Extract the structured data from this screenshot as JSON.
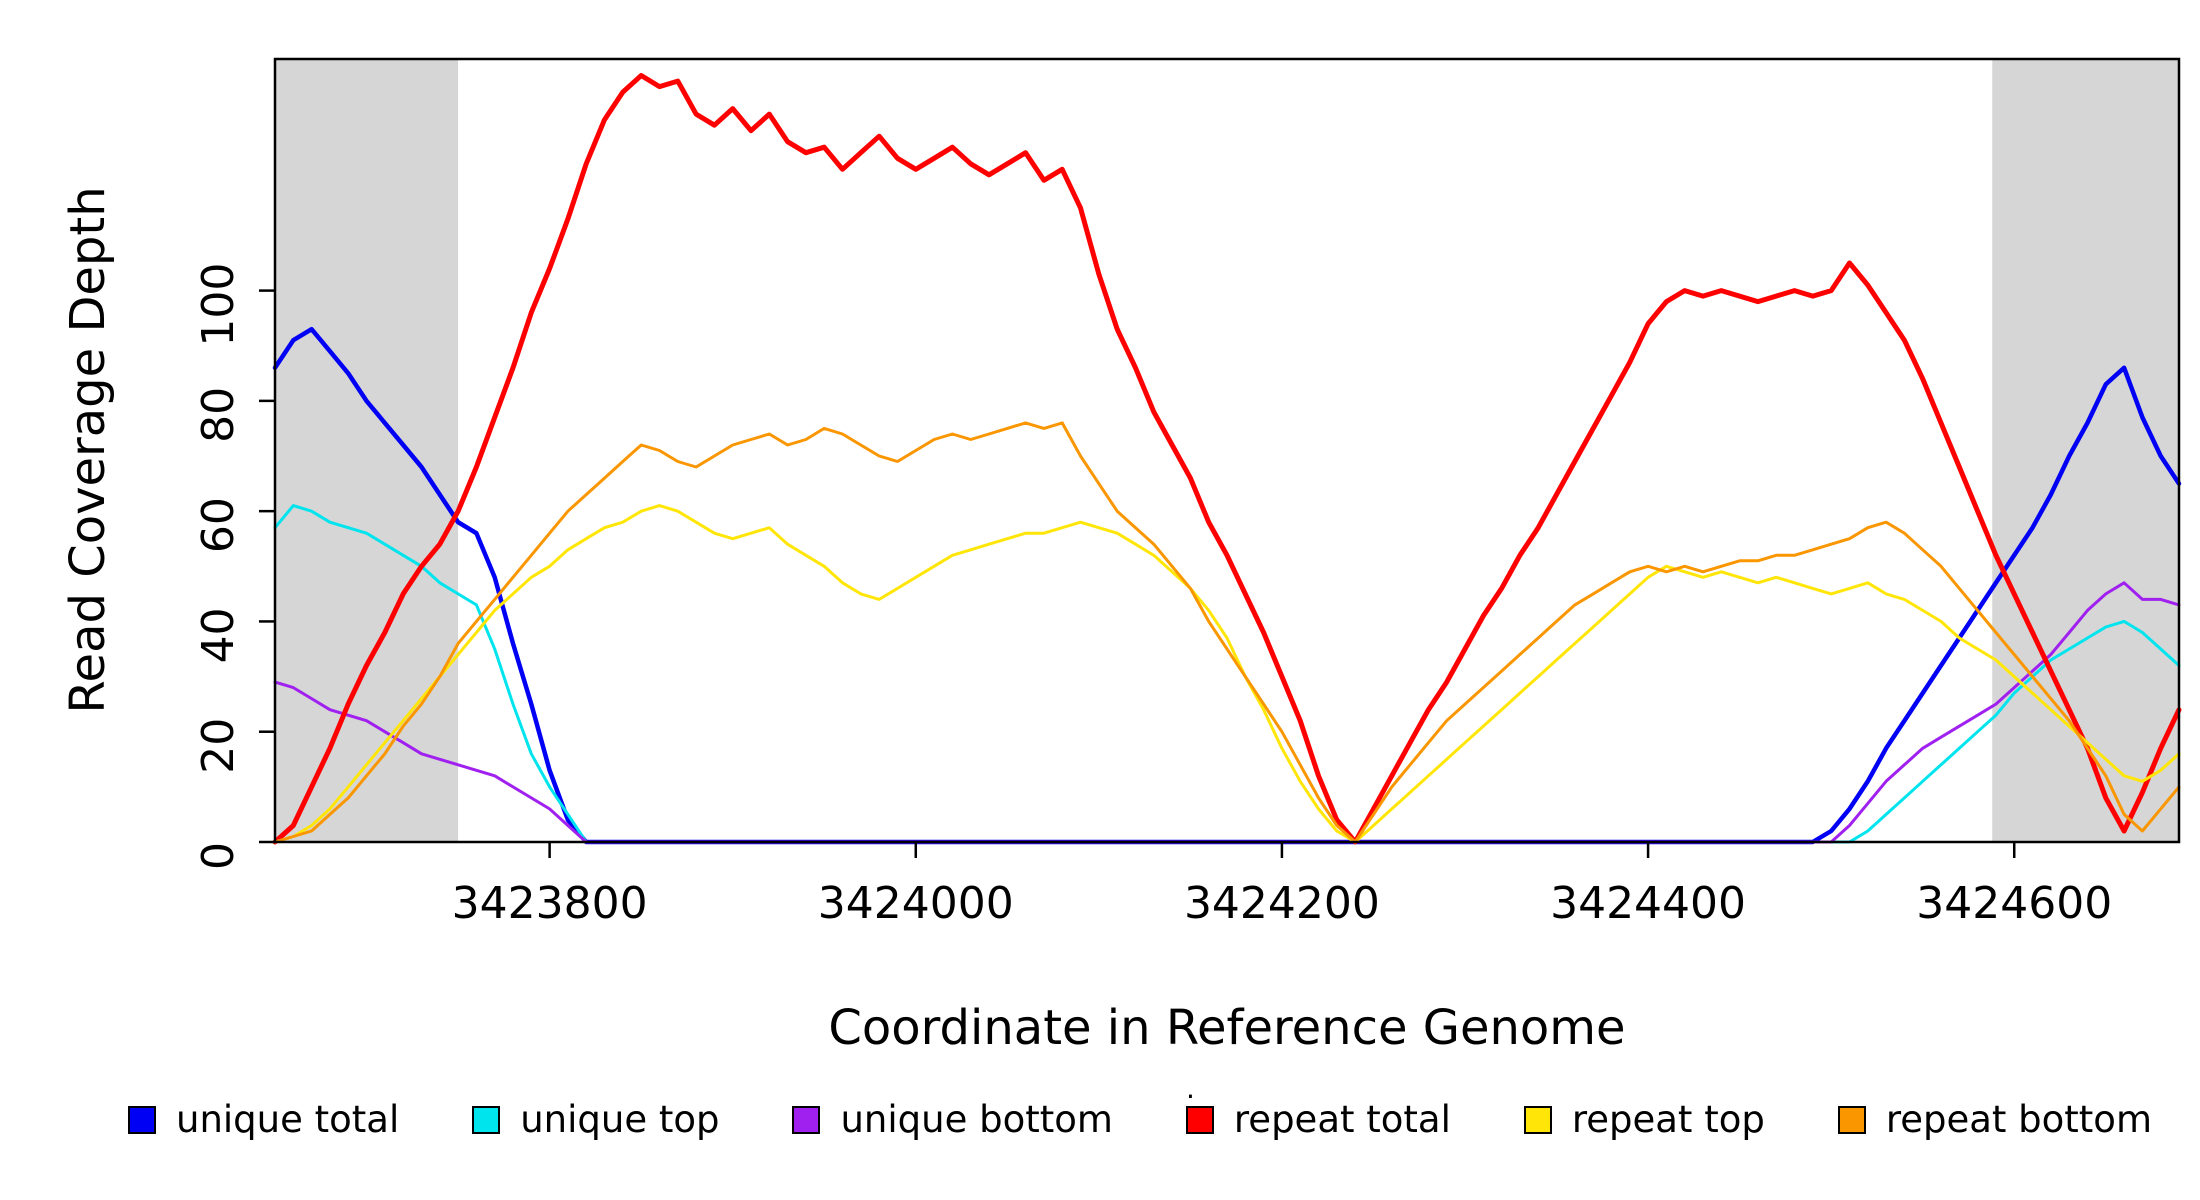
{
  "legend_dot": ".",
  "chart_data": {
    "type": "line",
    "title": "",
    "xlabel": "Coordinate in Reference Genome",
    "ylabel": "Read Coverage Depth",
    "xlim": [
      3423650,
      3424690
    ],
    "ylim": [
      0,
      142
    ],
    "x_ticks": [
      3423800,
      3424000,
      3424200,
      3424400,
      3424600
    ],
    "y_ticks": [
      0,
      20,
      40,
      60,
      80,
      100
    ],
    "grid": false,
    "legend_position": "bottom",
    "shade_color": "#d6d6d6",
    "shaded_regions": [
      {
        "x_start": 3423650,
        "x_end": 3423750
      },
      {
        "x_start": 3424588,
        "x_end": 3424690
      }
    ],
    "x_start": 3423650,
    "x_step": 10,
    "series": [
      {
        "name": "unique total",
        "color": "#0000F5",
        "width": 4.5,
        "values": [
          86,
          91,
          93,
          89,
          85,
          80,
          76,
          72,
          68,
          63,
          58,
          56,
          48,
          36,
          25,
          13,
          4,
          0,
          0,
          0,
          0,
          0,
          0,
          0,
          0,
          0,
          0,
          0,
          0,
          0,
          0,
          0,
          0,
          0,
          0,
          0,
          0,
          0,
          0,
          0,
          0,
          0,
          0,
          0,
          0,
          0,
          0,
          0,
          0,
          0,
          0,
          0,
          0,
          0,
          0,
          0,
          0,
          0,
          0,
          0,
          0,
          0,
          0,
          0,
          0,
          0,
          0,
          0,
          0,
          0,
          0,
          0,
          0,
          0,
          0,
          0,
          0,
          0,
          0,
          0,
          0,
          0,
          0,
          0,
          0,
          2,
          6,
          11,
          17,
          22,
          27,
          32,
          37,
          42,
          47,
          52,
          57,
          63,
          70,
          76,
          83,
          86,
          77,
          70,
          65
        ]
      },
      {
        "name": "unique top",
        "color": "#00E4EE",
        "width": 3,
        "values": [
          57,
          61,
          60,
          58,
          57,
          56,
          54,
          52,
          50,
          47,
          45,
          43,
          35,
          25,
          16,
          10,
          5,
          0,
          0,
          0,
          0,
          0,
          0,
          0,
          0,
          0,
          0,
          0,
          0,
          0,
          0,
          0,
          0,
          0,
          0,
          0,
          0,
          0,
          0,
          0,
          0,
          0,
          0,
          0,
          0,
          0,
          0,
          0,
          0,
          0,
          0,
          0,
          0,
          0,
          0,
          0,
          0,
          0,
          0,
          0,
          0,
          0,
          0,
          0,
          0,
          0,
          0,
          0,
          0,
          0,
          0,
          0,
          0,
          0,
          0,
          0,
          0,
          0,
          0,
          0,
          0,
          0,
          0,
          0,
          0,
          0,
          0,
          2,
          5,
          8,
          11,
          14,
          17,
          20,
          23,
          27,
          30,
          33,
          35,
          37,
          39,
          40,
          38,
          35,
          32
        ]
      },
      {
        "name": "unique bottom",
        "color": "#A020F0",
        "width": 3,
        "values": [
          29,
          28,
          26,
          24,
          23,
          22,
          20,
          18,
          16,
          15,
          14,
          13,
          12,
          10,
          8,
          6,
          3,
          0,
          0,
          0,
          0,
          0,
          0,
          0,
          0,
          0,
          0,
          0,
          0,
          0,
          0,
          0,
          0,
          0,
          0,
          0,
          0,
          0,
          0,
          0,
          0,
          0,
          0,
          0,
          0,
          0,
          0,
          0,
          0,
          0,
          0,
          0,
          0,
          0,
          0,
          0,
          0,
          0,
          0,
          0,
          0,
          0,
          0,
          0,
          0,
          0,
          0,
          0,
          0,
          0,
          0,
          0,
          0,
          0,
          0,
          0,
          0,
          0,
          0,
          0,
          0,
          0,
          0,
          0,
          0,
          0,
          3,
          7,
          11,
          14,
          17,
          19,
          21,
          23,
          25,
          28,
          31,
          34,
          38,
          42,
          45,
          47,
          44,
          44,
          43
        ]
      },
      {
        "name": "repeat total",
        "color": "#FF0000",
        "width": 5,
        "values": [
          0,
          3,
          10,
          17,
          25,
          32,
          38,
          45,
          50,
          54,
          60,
          68,
          77,
          86,
          96,
          104,
          113,
          123,
          131,
          136,
          139,
          137,
          138,
          132,
          130,
          133,
          129,
          132,
          127,
          125,
          126,
          122,
          125,
          128,
          124,
          122,
          124,
          126,
          123,
          121,
          123,
          125,
          120,
          122,
          115,
          103,
          93,
          86,
          78,
          72,
          66,
          58,
          52,
          45,
          38,
          30,
          22,
          12,
          4,
          0,
          6,
          12,
          18,
          24,
          29,
          35,
          41,
          46,
          52,
          57,
          63,
          69,
          75,
          81,
          87,
          94,
          98,
          100,
          99,
          100,
          99,
          98,
          99,
          100,
          99,
          100,
          105,
          101,
          96,
          91,
          84,
          76,
          68,
          60,
          52,
          45,
          38,
          31,
          24,
          17,
          8,
          2,
          9,
          17,
          24
        ]
      },
      {
        "name": "repeat top",
        "color": "#FFE608",
        "width": 3,
        "values": [
          0,
          1,
          3,
          6,
          10,
          14,
          18,
          22,
          26,
          30,
          34,
          38,
          42,
          45,
          48,
          50,
          53,
          55,
          57,
          58,
          60,
          61,
          60,
          58,
          56,
          55,
          56,
          57,
          54,
          52,
          50,
          47,
          45,
          44,
          46,
          48,
          50,
          52,
          53,
          54,
          55,
          56,
          56,
          57,
          58,
          57,
          56,
          54,
          52,
          49,
          46,
          42,
          37,
          30,
          24,
          17,
          11,
          6,
          2,
          0,
          3,
          6,
          9,
          12,
          15,
          18,
          21,
          24,
          27,
          30,
          33,
          36,
          39,
          42,
          45,
          48,
          50,
          49,
          48,
          49,
          48,
          47,
          48,
          47,
          46,
          45,
          46,
          47,
          45,
          44,
          42,
          40,
          37,
          35,
          33,
          30,
          27,
          24,
          21,
          18,
          15,
          12,
          11,
          13,
          16
        ]
      },
      {
        "name": "repeat bottom",
        "color": "#FA9600",
        "width": 3,
        "values": [
          0,
          1,
          2,
          5,
          8,
          12,
          16,
          21,
          25,
          30,
          36,
          40,
          44,
          48,
          52,
          56,
          60,
          63,
          66,
          69,
          72,
          71,
          69,
          68,
          70,
          72,
          73,
          74,
          72,
          73,
          75,
          74,
          72,
          70,
          69,
          71,
          73,
          74,
          73,
          74,
          75,
          76,
          75,
          76,
          70,
          65,
          60,
          57,
          54,
          50,
          46,
          40,
          35,
          30,
          25,
          20,
          14,
          8,
          3,
          0,
          5,
          10,
          14,
          18,
          22,
          25,
          28,
          31,
          34,
          37,
          40,
          43,
          45,
          47,
          49,
          50,
          49,
          50,
          49,
          50,
          51,
          51,
          52,
          52,
          53,
          54,
          55,
          57,
          58,
          56,
          53,
          50,
          46,
          42,
          38,
          34,
          30,
          26,
          22,
          17,
          12,
          5,
          2,
          6,
          10
        ]
      }
    ]
  }
}
